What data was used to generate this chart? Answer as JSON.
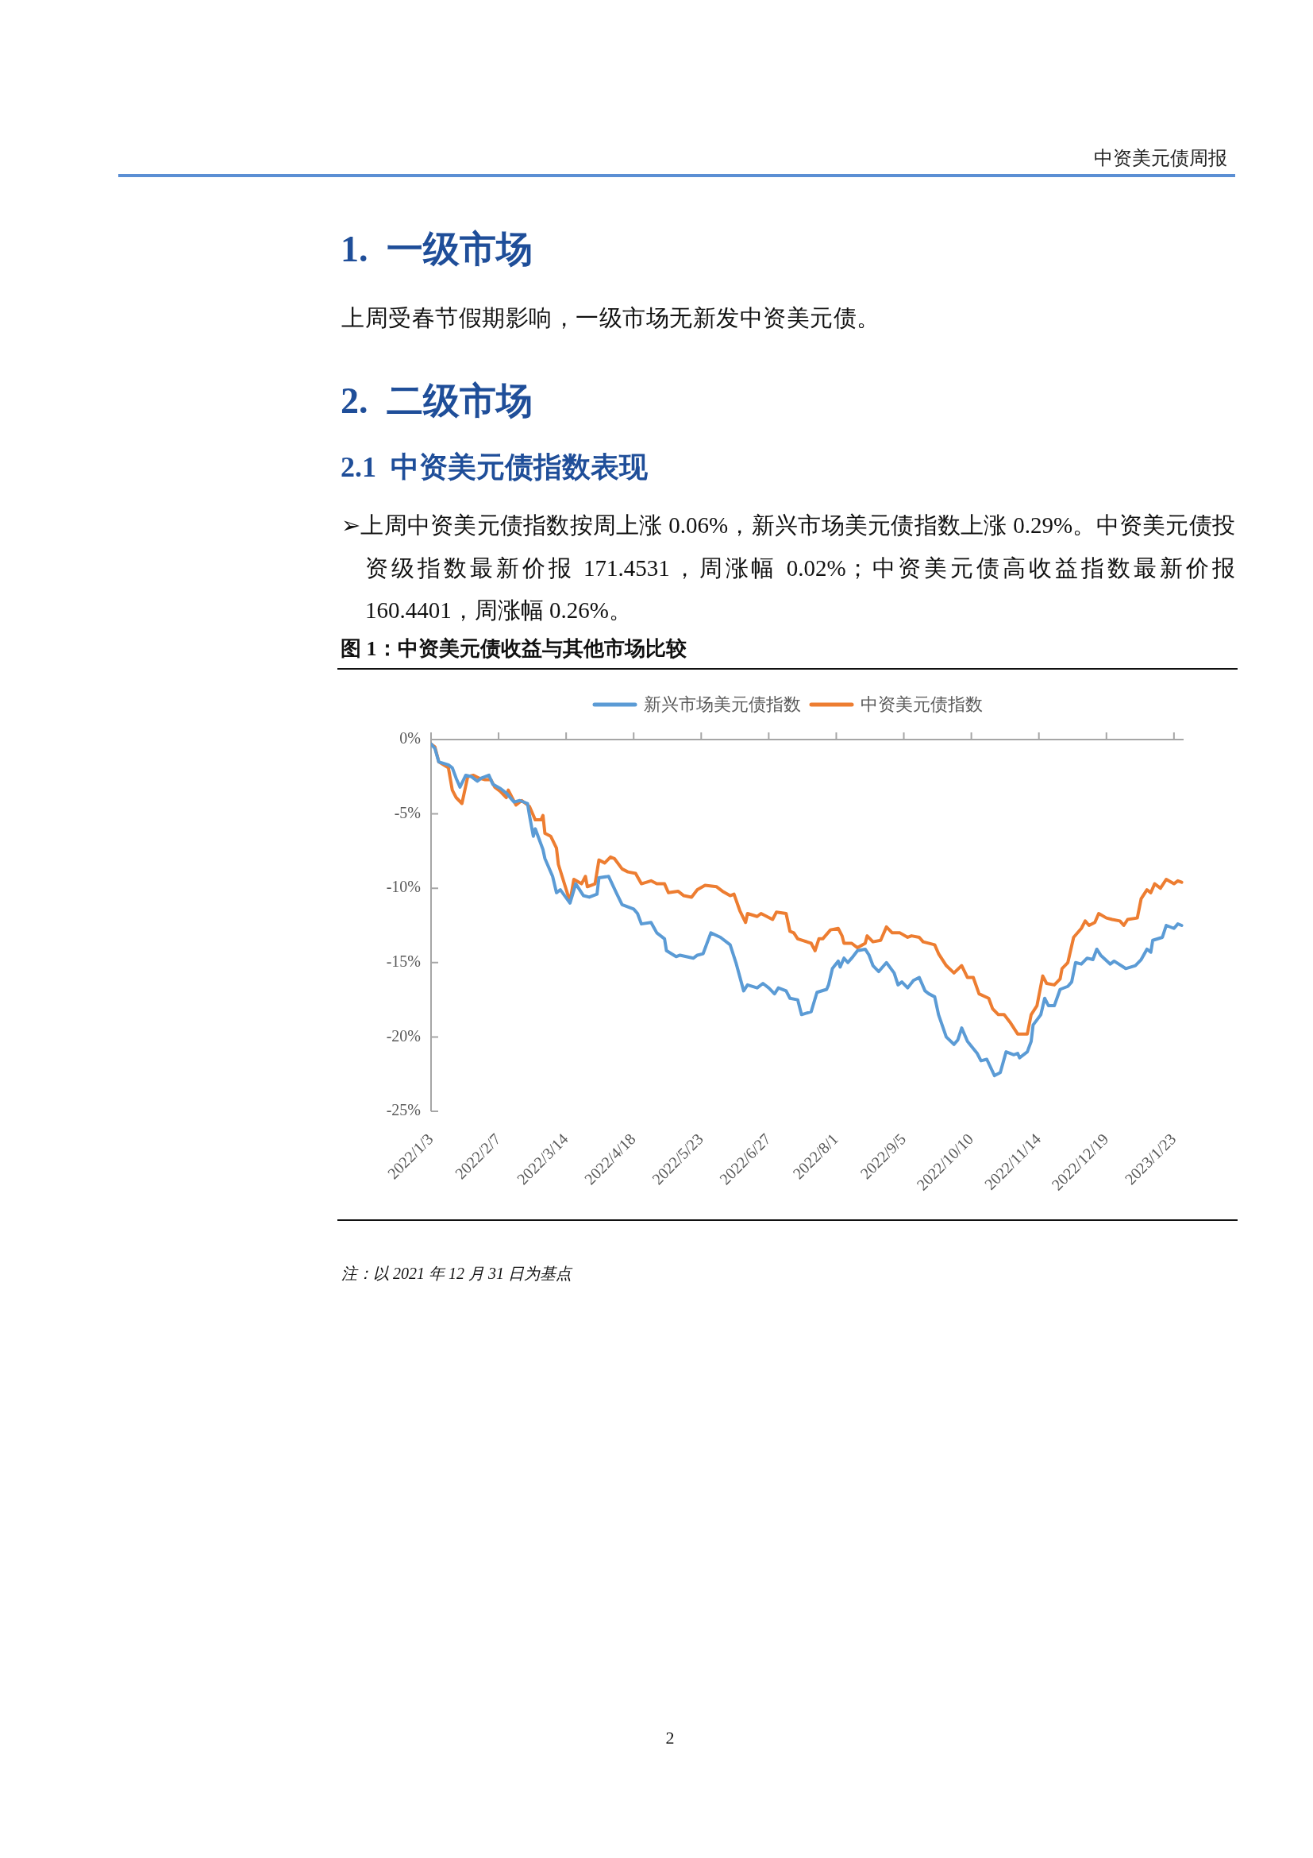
{
  "chart_data": {
    "type": "line",
    "title": "图 1：中资美元债收益与其他市场比较",
    "annotations": [
      "中资美元债周报",
      "1.  一级市场",
      "上周受春节假期影响，一级市场无新发中资美元债。",
      "2.  二级市场",
      "2.1  中资美元债指数表现",
      "➢上周中资美元债指数按周上涨 0.06%，新兴市场美元债指数上涨 0.29%。中资美元债投资级指数最新价报 171.4531，周涨幅 0.02%；中资美元债高收益指数最新价报 160.4401，周涨幅 0.26%。",
      "注：以 2021 年 12 月 31 日为基点",
      "2"
    ],
    "xlim": [
      "2022-01-03",
      "2023-01-28"
    ],
    "xticks": [
      {
        "value": "2022-01-03",
        "label": "2022/1/3"
      },
      {
        "value": "2022-02-07",
        "label": "2022/2/7"
      },
      {
        "value": "2022-03-14",
        "label": "2022/3/14"
      },
      {
        "value": "2022-04-18",
        "label": "2022/4/18"
      },
      {
        "value": "2022-05-23",
        "label": "2022/5/23"
      },
      {
        "value": "2022-06-27",
        "label": "2022/6/27"
      },
      {
        "value": "2022-08-01",
        "label": "2022/8/1"
      },
      {
        "value": "2022-09-05",
        "label": "2022/9/5"
      },
      {
        "value": "2022-10-10",
        "label": "2022/10/10"
      },
      {
        "value": "2022-11-14",
        "label": "2022/11/14"
      },
      {
        "value": "2022-12-19",
        "label": "2022/12/19"
      },
      {
        "value": "2023-01-23",
        "label": "2023/1/23"
      }
    ],
    "ylim": [
      -25,
      0
    ],
    "yticks": [
      {
        "value": 0,
        "label": "0%"
      },
      {
        "value": -5,
        "label": "-5%"
      },
      {
        "value": -10,
        "label": "-10%"
      },
      {
        "value": -15,
        "label": "-15%"
      },
      {
        "value": -20,
        "label": "-20%"
      },
      {
        "value": -25,
        "label": "-25%"
      }
    ],
    "legend": "top",
    "series": [
      {
        "name": "新兴市场美元债指数",
        "color": "#5b9bd5",
        "x": [
          "2022-01-03",
          "2022-01-05",
          "2022-01-07",
          "2022-01-12",
          "2022-01-14",
          "2022-01-16",
          "2022-01-18",
          "2022-01-21",
          "2022-01-24",
          "2022-01-27",
          "2022-01-29",
          "2022-02-02",
          "2022-02-04",
          "2022-02-08",
          "2022-02-11",
          "2022-02-15",
          "2022-02-18",
          "2022-02-22",
          "2022-02-23",
          "2022-02-25",
          "2022-02-26",
          "2022-03-02",
          "2022-03-03",
          "2022-03-07",
          "2022-03-09",
          "2022-03-11",
          "2022-03-16",
          "2022-03-19",
          "2022-03-23",
          "2022-03-26",
          "2022-03-30",
          "2022-03-31",
          "2022-04-05",
          "2022-04-09",
          "2022-04-12",
          "2022-04-18",
          "2022-04-20",
          "2022-04-22",
          "2022-04-27",
          "2022-04-30",
          "2022-05-04",
          "2022-05-05",
          "2022-05-10",
          "2022-05-12",
          "2022-05-19",
          "2022-05-21",
          "2022-05-24",
          "2022-05-28",
          "2022-06-02",
          "2022-06-07",
          "2022-06-10",
          "2022-06-14",
          "2022-06-16",
          "2022-06-21",
          "2022-06-24",
          "2022-06-27",
          "2022-06-30",
          "2022-07-02",
          "2022-07-06",
          "2022-07-08",
          "2022-07-12",
          "2022-07-14",
          "2022-07-19",
          "2022-07-22",
          "2022-07-27",
          "2022-07-28",
          "2022-07-30",
          "2022-08-02",
          "2022-08-03",
          "2022-08-05",
          "2022-08-07",
          "2022-08-09",
          "2022-08-12",
          "2022-08-16",
          "2022-08-18",
          "2022-08-20",
          "2022-08-23",
          "2022-08-27",
          "2022-08-31",
          "2022-09-02",
          "2022-09-04",
          "2022-09-07",
          "2022-09-10",
          "2022-09-13",
          "2022-09-16",
          "2022-09-18",
          "2022-09-21",
          "2022-09-23",
          "2022-09-27",
          "2022-10-01",
          "2022-10-03",
          "2022-10-05",
          "2022-10-08",
          "2022-10-13",
          "2022-10-15",
          "2022-10-18",
          "2022-10-22",
          "2022-10-25",
          "2022-10-28",
          "2022-11-01",
          "2022-11-03",
          "2022-11-04",
          "2022-11-08",
          "2022-11-10",
          "2022-11-11",
          "2022-11-15",
          "2022-11-17",
          "2022-11-19",
          "2022-11-22",
          "2022-11-25",
          "2022-11-29",
          "2022-12-01",
          "2022-12-03",
          "2022-12-06",
          "2022-12-09",
          "2022-12-12",
          "2022-12-14",
          "2022-12-16",
          "2022-12-21",
          "2022-12-23",
          "2022-12-29",
          "2023-01-03",
          "2023-01-06",
          "2023-01-09",
          "2023-01-11",
          "2023-01-12",
          "2023-01-17",
          "2023-01-19",
          "2023-01-23",
          "2023-01-25",
          "2023-01-27"
        ],
        "values": [
          -0.3,
          -0.6,
          -1.5,
          -1.7,
          -1.9,
          -2.6,
          -3.2,
          -2.4,
          -2.5,
          -2.8,
          -2.6,
          -2.4,
          -3.0,
          -3.3,
          -3.6,
          -4.2,
          -4.1,
          -4.3,
          -5.1,
          -6.5,
          -6.0,
          -7.4,
          -8.0,
          -9.2,
          -10.3,
          -10.1,
          -11.0,
          -9.7,
          -10.5,
          -10.6,
          -10.4,
          -9.3,
          -9.2,
          -10.3,
          -11.1,
          -11.4,
          -11.7,
          -12.4,
          -12.3,
          -13.0,
          -13.4,
          -14.2,
          -14.6,
          -14.5,
          -14.7,
          -14.5,
          -14.4,
          -13.0,
          -13.3,
          -13.8,
          -15.0,
          -16.9,
          -16.5,
          -16.7,
          -16.4,
          -16.7,
          -17.1,
          -16.7,
          -16.9,
          -17.4,
          -17.5,
          -18.5,
          -18.3,
          -17.0,
          -16.8,
          -16.5,
          -15.4,
          -14.9,
          -15.3,
          -14.7,
          -15.0,
          -14.7,
          -14.2,
          -14.1,
          -14.5,
          -15.2,
          -15.6,
          -15.0,
          -15.7,
          -16.5,
          -16.3,
          -16.7,
          -16.2,
          -16.0,
          -16.9,
          -17.1,
          -17.3,
          -18.5,
          -20.0,
          -20.5,
          -20.2,
          -19.4,
          -20.3,
          -21.1,
          -21.6,
          -21.5,
          -22.6,
          -22.4,
          -21.0,
          -21.2,
          -21.1,
          -21.4,
          -21.0,
          -20.3,
          -19.2,
          -18.5,
          -17.4,
          -17.9,
          -17.9,
          -16.8,
          -16.6,
          -16.3,
          -15.0,
          -15.1,
          -14.7,
          -14.8,
          -14.1,
          -14.5,
          -15.1,
          -14.9,
          -15.4,
          -15.2,
          -14.8,
          -14.1,
          -14.3,
          -13.5,
          -13.3,
          -12.5,
          -12.7,
          -12.4,
          -12.5
        ]
      },
      {
        "name": "中资美元债指数",
        "color": "#ed7d31",
        "x": [
          "2022-01-03",
          "2022-01-05",
          "2022-01-07",
          "2022-01-12",
          "2022-01-14",
          "2022-01-16",
          "2022-01-19",
          "2022-01-22",
          "2022-01-25",
          "2022-01-28",
          "2022-01-31",
          "2022-02-03",
          "2022-02-05",
          "2022-02-08",
          "2022-02-11",
          "2022-02-12",
          "2022-02-16",
          "2022-02-19",
          "2022-02-23",
          "2022-02-26",
          "2022-03-01",
          "2022-03-02",
          "2022-03-03",
          "2022-03-06",
          "2022-03-09",
          "2022-03-10",
          "2022-03-16",
          "2022-03-18",
          "2022-03-22",
          "2022-03-24",
          "2022-03-25",
          "2022-03-29",
          "2022-03-31",
          "2022-04-03",
          "2022-04-06",
          "2022-04-08",
          "2022-04-12",
          "2022-04-15",
          "2022-04-19",
          "2022-04-22",
          "2022-04-27",
          "2022-04-30",
          "2022-05-04",
          "2022-05-06",
          "2022-05-11",
          "2022-05-14",
          "2022-05-18",
          "2022-05-21",
          "2022-05-25",
          "2022-05-31",
          "2022-06-03",
          "2022-06-07",
          "2022-06-09",
          "2022-06-12",
          "2022-06-15",
          "2022-06-16",
          "2022-06-21",
          "2022-06-23",
          "2022-06-29",
          "2022-07-01",
          "2022-07-06",
          "2022-07-08",
          "2022-07-10",
          "2022-07-12",
          "2022-07-19",
          "2022-07-21",
          "2022-07-23",
          "2022-07-25",
          "2022-07-29",
          "2022-08-02",
          "2022-08-04",
          "2022-08-05",
          "2022-08-09",
          "2022-08-12",
          "2022-08-16",
          "2022-08-17",
          "2022-08-20",
          "2022-08-24",
          "2022-08-27",
          "2022-08-30",
          "2022-09-03",
          "2022-09-07",
          "2022-09-09",
          "2022-09-13",
          "2022-09-15",
          "2022-09-21",
          "2022-09-23",
          "2022-09-27",
          "2022-10-01",
          "2022-10-05",
          "2022-10-08",
          "2022-10-11",
          "2022-10-14",
          "2022-10-19",
          "2022-10-21",
          "2022-10-24",
          "2022-10-27",
          "2022-10-30",
          "2022-11-03",
          "2022-11-08",
          "2022-11-10",
          "2022-11-13",
          "2022-11-16",
          "2022-11-18",
          "2022-11-22",
          "2022-11-25",
          "2022-11-26",
          "2022-11-29",
          "2022-12-02",
          "2022-12-06",
          "2022-12-08",
          "2022-12-10",
          "2022-12-13",
          "2022-12-15",
          "2022-12-19",
          "2022-12-22",
          "2022-12-26",
          "2022-12-28",
          "2022-12-30",
          "2023-01-04",
          "2023-01-06",
          "2023-01-09",
          "2023-01-11",
          "2023-01-13",
          "2023-01-16",
          "2023-01-19",
          "2023-01-23",
          "2023-01-25",
          "2023-01-27"
        ],
        "values": [
          -0.3,
          -0.5,
          -1.5,
          -1.9,
          -3.4,
          -3.9,
          -4.3,
          -2.5,
          -2.4,
          -2.6,
          -2.7,
          -2.7,
          -3.2,
          -3.5,
          -3.9,
          -3.4,
          -4.4,
          -4.1,
          -4.5,
          -5.4,
          -5.4,
          -5.1,
          -6.3,
          -6.5,
          -7.3,
          -8.4,
          -10.9,
          -9.4,
          -9.7,
          -9.2,
          -9.9,
          -9.7,
          -8.1,
          -8.3,
          -7.9,
          -8.0,
          -8.7,
          -8.9,
          -9.0,
          -9.7,
          -9.5,
          -9.7,
          -9.7,
          -10.3,
          -10.2,
          -10.5,
          -10.6,
          -10.1,
          -9.8,
          -9.9,
          -10.2,
          -10.5,
          -10.4,
          -11.5,
          -12.3,
          -11.7,
          -11.9,
          -11.7,
          -12.1,
          -11.6,
          -11.7,
          -12.9,
          -13.0,
          -13.4,
          -13.7,
          -14.2,
          -13.4,
          -13.4,
          -12.8,
          -12.7,
          -13.2,
          -13.7,
          -13.7,
          -14.0,
          -13.7,
          -13.2,
          -13.6,
          -13.5,
          -12.6,
          -13.0,
          -13.0,
          -13.3,
          -13.2,
          -13.3,
          -13.6,
          -13.8,
          -14.4,
          -15.2,
          -15.7,
          -15.2,
          -16.0,
          -16.0,
          -17.1,
          -17.4,
          -18.1,
          -18.5,
          -18.5,
          -19.0,
          -19.8,
          -19.8,
          -18.5,
          -17.9,
          -15.9,
          -16.4,
          -16.5,
          -16.1,
          -15.4,
          -15.0,
          -13.3,
          -12.7,
          -12.2,
          -12.5,
          -12.3,
          -11.7,
          -12.0,
          -12.1,
          -12.2,
          -12.5,
          -12.1,
          -12.0,
          -10.7,
          -10.1,
          -10.3,
          -9.7,
          -10.0,
          -9.4,
          -9.7,
          -9.5,
          -9.6
        ]
      }
    ]
  }
}
